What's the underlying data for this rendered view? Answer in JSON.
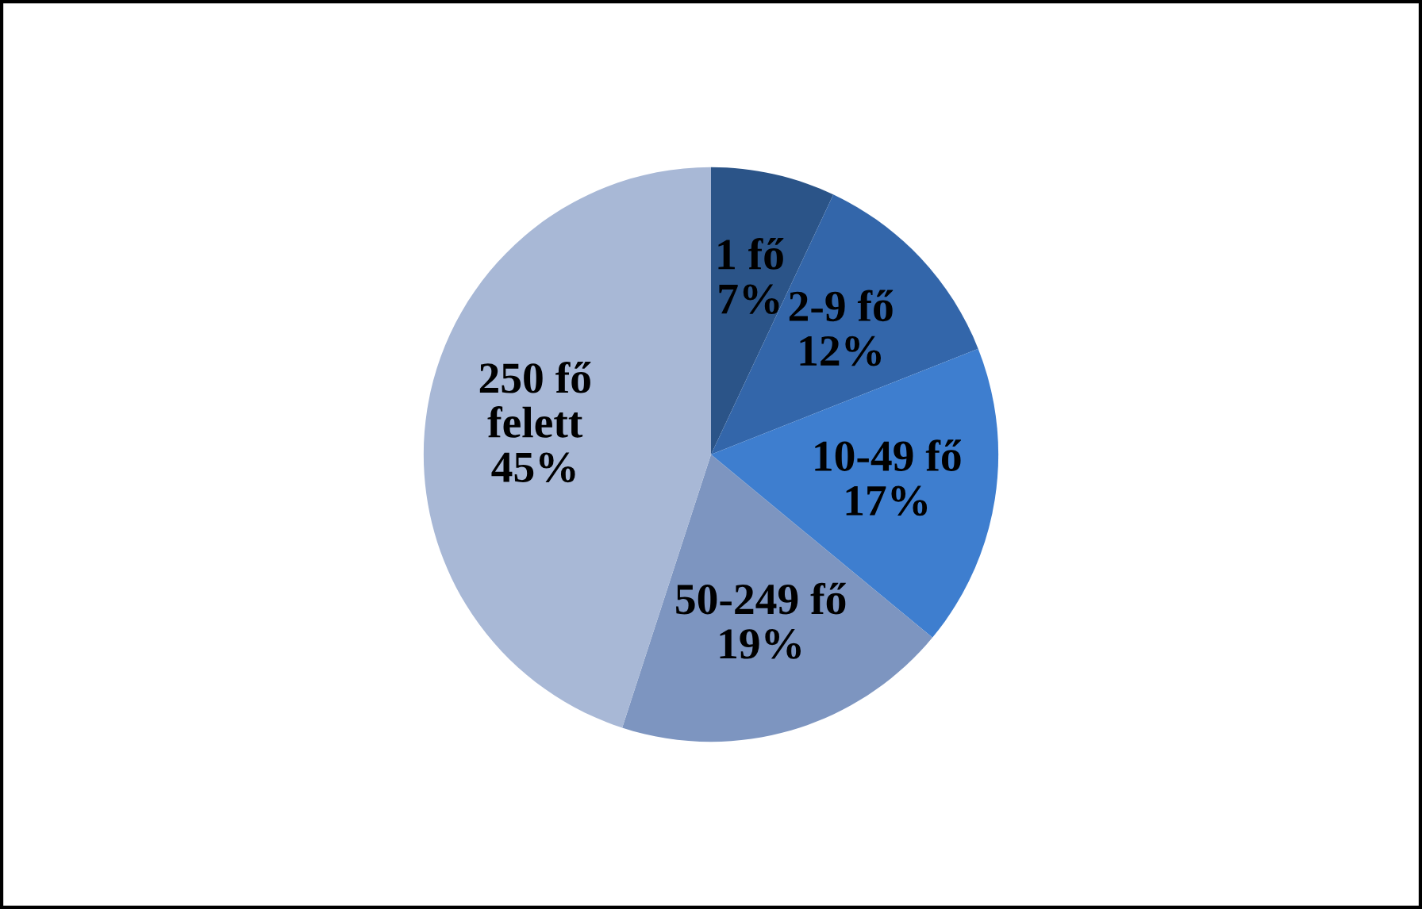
{
  "chart_data": {
    "type": "pie",
    "categories": [
      "1 fő",
      "2-9 fő",
      "10-49 fő",
      "50-249 fő",
      "250 fő felett"
    ],
    "values": [
      7,
      12,
      17,
      19,
      45
    ],
    "value_labels": [
      "7%",
      "12%",
      "17%",
      "19%",
      "45%"
    ],
    "colors": [
      "#2b5488",
      "#3366aa",
      "#3e7ecf",
      "#7d95c0",
      "#a8b8d6"
    ],
    "legend": false
  }
}
